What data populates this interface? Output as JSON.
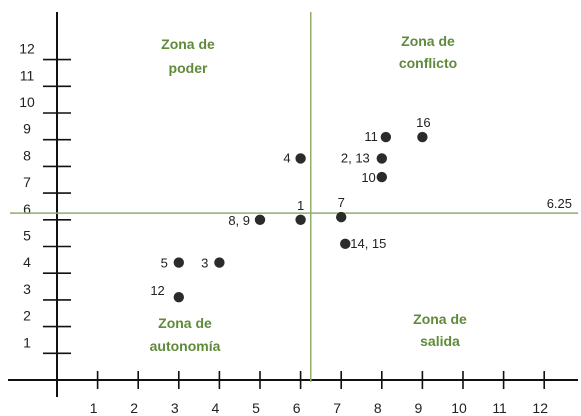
{
  "chart_data": {
    "type": "scatter",
    "title": "",
    "xlabel": "",
    "ylabel": "",
    "xlim": [
      0,
      13
    ],
    "ylim": [
      0,
      12.5
    ],
    "x_ticks": [
      "1",
      "2",
      "3",
      "4",
      "5",
      "6",
      "7",
      "8",
      "9",
      "10",
      "11",
      "12"
    ],
    "y_ticks": [
      "1",
      "2",
      "3",
      "4",
      "5",
      "6",
      "7",
      "8",
      "9",
      "10",
      "11",
      "12"
    ],
    "grid": false,
    "threshold": {
      "x": 6.25,
      "y": 6.25,
      "label": "6.25"
    },
    "points": [
      {
        "label": "12",
        "x": 3.0,
        "y": 3.1
      },
      {
        "label": "5",
        "x": 3.0,
        "y": 4.4
      },
      {
        "label": "3",
        "x": 4.0,
        "y": 4.4
      },
      {
        "label": "8, 9",
        "x": 5.0,
        "y": 6.0
      },
      {
        "label": "1",
        "x": 6.0,
        "y": 6.0
      },
      {
        "label": "7",
        "x": 7.0,
        "y": 6.1
      },
      {
        "label": "14, 15",
        "x": 7.1,
        "y": 5.1
      },
      {
        "label": "4",
        "x": 6.0,
        "y": 8.3
      },
      {
        "label": "2, 13",
        "x": 8.0,
        "y": 8.3
      },
      {
        "label": "10",
        "x": 8.0,
        "y": 7.6
      },
      {
        "label": "11",
        "x": 8.1,
        "y": 9.1
      },
      {
        "label": "16",
        "x": 9.0,
        "y": 9.1
      }
    ],
    "quadrants": [
      {
        "position": "top-left",
        "lines": [
          "Zona de",
          "poder"
        ]
      },
      {
        "position": "top-right",
        "lines": [
          "Zona de",
          "conflicto"
        ]
      },
      {
        "position": "bottom-left",
        "lines": [
          "Zona de",
          "autonomía"
        ]
      },
      {
        "position": "bottom-right",
        "lines": [
          "Zona de",
          "salida"
        ]
      }
    ],
    "colors": {
      "threshold_line": "#8fae6c",
      "quadrant_text": "#5f8a3a",
      "point": "#2b2b2b",
      "axis": "#111111"
    }
  }
}
